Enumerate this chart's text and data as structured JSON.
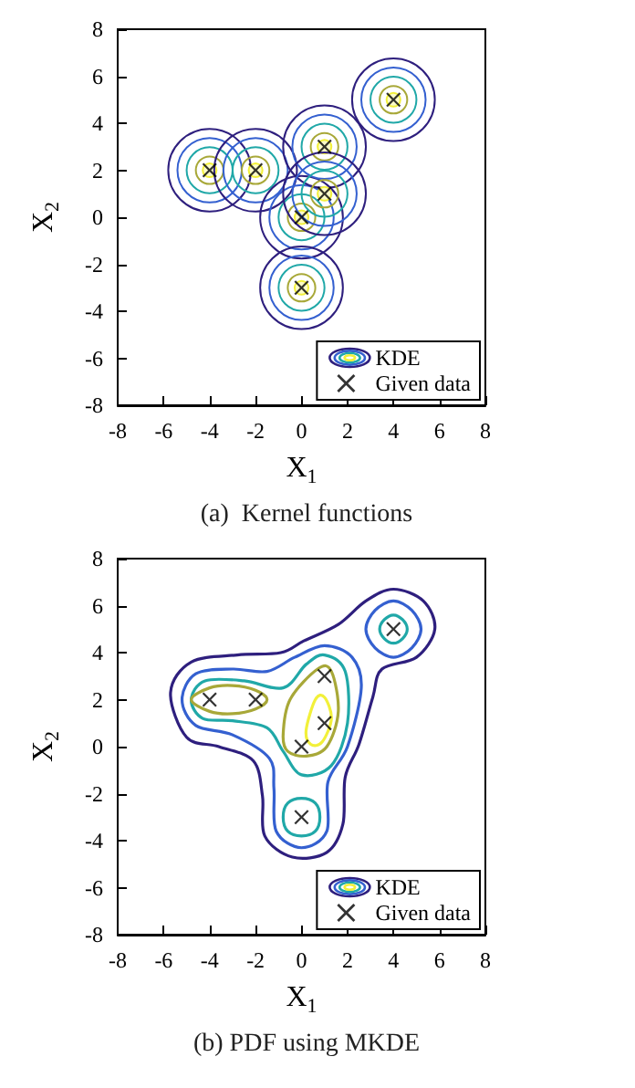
{
  "chart_data": [
    {
      "type": "scatter",
      "title": "(a)  Kernel functions",
      "xlabel": "X$_{1}$",
      "ylabel": "X$_{2}$",
      "xlim": [
        -8,
        8
      ],
      "ylim": [
        -8,
        8
      ],
      "xticks": [
        -8,
        -6,
        -4,
        -2,
        0,
        2,
        4,
        6,
        8
      ],
      "yticks": [
        -8,
        -6,
        -4,
        -2,
        0,
        2,
        4,
        6,
        8
      ],
      "legend": "bottom right",
      "annotations": [
        "KDE"
      ],
      "series": [
        {
          "type": "scatter",
          "name": "Given data",
          "color": "#000000",
          "marker": "cross",
          "x": [
            -4,
            -2,
            0,
            1,
            1,
            4,
            0
          ],
          "values": [
            2,
            2,
            0,
            3,
            1,
            5,
            -3
          ]
        }
      ]
    },
    {
      "type": "scatter",
      "title": "(b) PDF using MKDE",
      "xlabel": "X$_{1}$",
      "ylabel": "X$_{2}$",
      "xlim": [
        -8,
        8
      ],
      "ylim": [
        -8,
        8
      ],
      "xticks": [
        -8,
        -6,
        -4,
        -2,
        0,
        2,
        4,
        6,
        8
      ],
      "yticks": [
        -8,
        -6,
        -4,
        -2,
        0,
        2,
        4,
        6,
        8
      ],
      "legend": "bottom right",
      "annotations": [
        "KDE"
      ],
      "series": [
        {
          "type": "scatter",
          "name": "Given data",
          "color": "#000000",
          "marker": "cross",
          "x": [
            -4,
            -2,
            0,
            1,
            1,
            4,
            0
          ],
          "values": [
            2,
            2,
            0,
            3,
            1,
            5,
            -3
          ]
        }
      ]
    }
  ]
}
